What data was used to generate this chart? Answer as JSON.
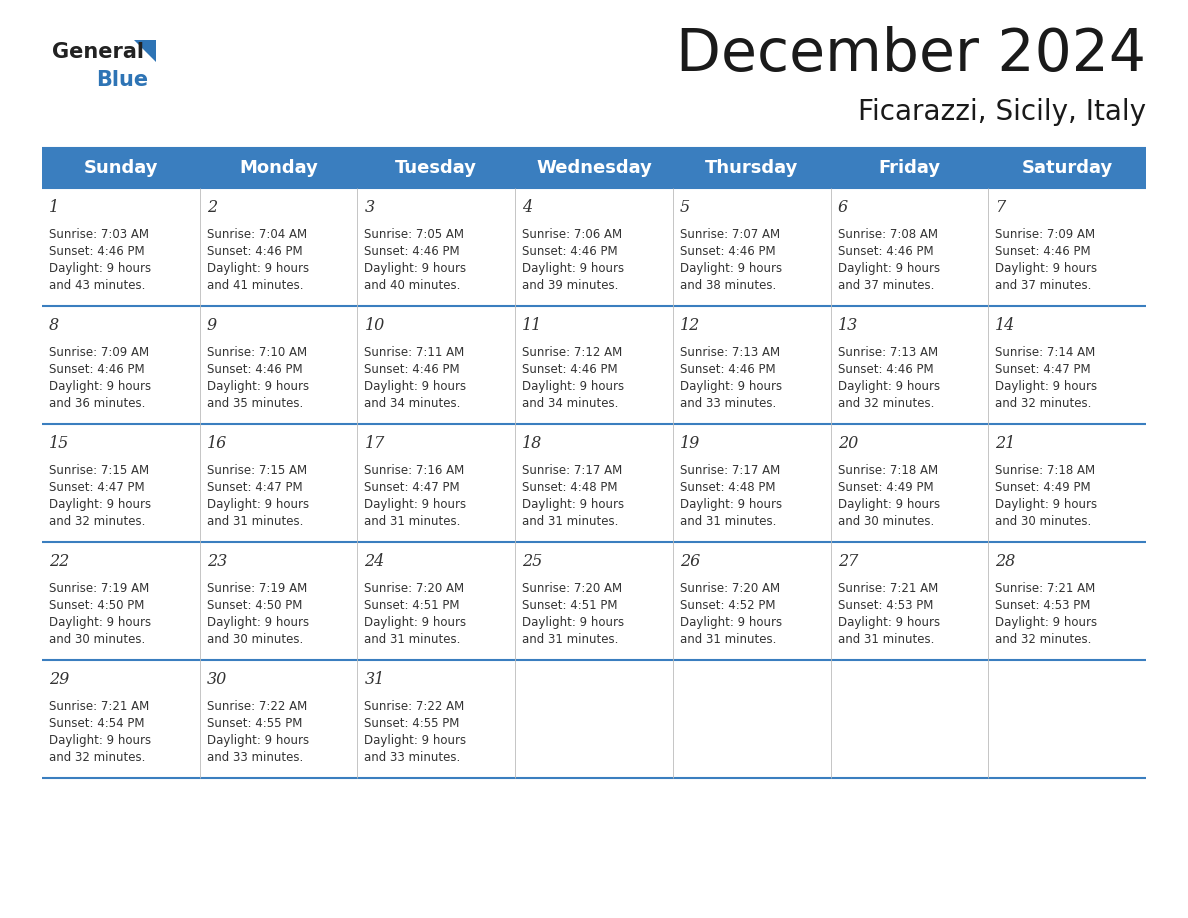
{
  "title": "December 2024",
  "subtitle": "Ficarazzi, Sicily, Italy",
  "header_bg": "#3a7ebf",
  "header_text_color": "#ffffff",
  "days_of_week": [
    "Sunday",
    "Monday",
    "Tuesday",
    "Wednesday",
    "Thursday",
    "Friday",
    "Saturday"
  ],
  "row_bg": "#ffffff",
  "separator_color": "#3a7ebf",
  "grid_line_color": "#cccccc",
  "text_color": "#333333",
  "logo_general_color": "#222222",
  "logo_blue_color": "#2e74b5",
  "weeks": [
    [
      {
        "day": 1,
        "sunrise": "7:03 AM",
        "sunset": "4:46 PM",
        "daylight": "9 hours and 43 minutes."
      },
      {
        "day": 2,
        "sunrise": "7:04 AM",
        "sunset": "4:46 PM",
        "daylight": "9 hours and 41 minutes."
      },
      {
        "day": 3,
        "sunrise": "7:05 AM",
        "sunset": "4:46 PM",
        "daylight": "9 hours and 40 minutes."
      },
      {
        "day": 4,
        "sunrise": "7:06 AM",
        "sunset": "4:46 PM",
        "daylight": "9 hours and 39 minutes."
      },
      {
        "day": 5,
        "sunrise": "7:07 AM",
        "sunset": "4:46 PM",
        "daylight": "9 hours and 38 minutes."
      },
      {
        "day": 6,
        "sunrise": "7:08 AM",
        "sunset": "4:46 PM",
        "daylight": "9 hours and 37 minutes."
      },
      {
        "day": 7,
        "sunrise": "7:09 AM",
        "sunset": "4:46 PM",
        "daylight": "9 hours and 37 minutes."
      }
    ],
    [
      {
        "day": 8,
        "sunrise": "7:09 AM",
        "sunset": "4:46 PM",
        "daylight": "9 hours and 36 minutes."
      },
      {
        "day": 9,
        "sunrise": "7:10 AM",
        "sunset": "4:46 PM",
        "daylight": "9 hours and 35 minutes."
      },
      {
        "day": 10,
        "sunrise": "7:11 AM",
        "sunset": "4:46 PM",
        "daylight": "9 hours and 34 minutes."
      },
      {
        "day": 11,
        "sunrise": "7:12 AM",
        "sunset": "4:46 PM",
        "daylight": "9 hours and 34 minutes."
      },
      {
        "day": 12,
        "sunrise": "7:13 AM",
        "sunset": "4:46 PM",
        "daylight": "9 hours and 33 minutes."
      },
      {
        "day": 13,
        "sunrise": "7:13 AM",
        "sunset": "4:46 PM",
        "daylight": "9 hours and 32 minutes."
      },
      {
        "day": 14,
        "sunrise": "7:14 AM",
        "sunset": "4:47 PM",
        "daylight": "9 hours and 32 minutes."
      }
    ],
    [
      {
        "day": 15,
        "sunrise": "7:15 AM",
        "sunset": "4:47 PM",
        "daylight": "9 hours and 32 minutes."
      },
      {
        "day": 16,
        "sunrise": "7:15 AM",
        "sunset": "4:47 PM",
        "daylight": "9 hours and 31 minutes."
      },
      {
        "day": 17,
        "sunrise": "7:16 AM",
        "sunset": "4:47 PM",
        "daylight": "9 hours and 31 minutes."
      },
      {
        "day": 18,
        "sunrise": "7:17 AM",
        "sunset": "4:48 PM",
        "daylight": "9 hours and 31 minutes."
      },
      {
        "day": 19,
        "sunrise": "7:17 AM",
        "sunset": "4:48 PM",
        "daylight": "9 hours and 31 minutes."
      },
      {
        "day": 20,
        "sunrise": "7:18 AM",
        "sunset": "4:49 PM",
        "daylight": "9 hours and 30 minutes."
      },
      {
        "day": 21,
        "sunrise": "7:18 AM",
        "sunset": "4:49 PM",
        "daylight": "9 hours and 30 minutes."
      }
    ],
    [
      {
        "day": 22,
        "sunrise": "7:19 AM",
        "sunset": "4:50 PM",
        "daylight": "9 hours and 30 minutes."
      },
      {
        "day": 23,
        "sunrise": "7:19 AM",
        "sunset": "4:50 PM",
        "daylight": "9 hours and 30 minutes."
      },
      {
        "day": 24,
        "sunrise": "7:20 AM",
        "sunset": "4:51 PM",
        "daylight": "9 hours and 31 minutes."
      },
      {
        "day": 25,
        "sunrise": "7:20 AM",
        "sunset": "4:51 PM",
        "daylight": "9 hours and 31 minutes."
      },
      {
        "day": 26,
        "sunrise": "7:20 AM",
        "sunset": "4:52 PM",
        "daylight": "9 hours and 31 minutes."
      },
      {
        "day": 27,
        "sunrise": "7:21 AM",
        "sunset": "4:53 PM",
        "daylight": "9 hours and 31 minutes."
      },
      {
        "day": 28,
        "sunrise": "7:21 AM",
        "sunset": "4:53 PM",
        "daylight": "9 hours and 32 minutes."
      }
    ],
    [
      {
        "day": 29,
        "sunrise": "7:21 AM",
        "sunset": "4:54 PM",
        "daylight": "9 hours and 32 minutes."
      },
      {
        "day": 30,
        "sunrise": "7:22 AM",
        "sunset": "4:55 PM",
        "daylight": "9 hours and 33 minutes."
      },
      {
        "day": 31,
        "sunrise": "7:22 AM",
        "sunset": "4:55 PM",
        "daylight": "9 hours and 33 minutes."
      },
      null,
      null,
      null,
      null
    ]
  ],
  "figsize": [
    11.88,
    9.18
  ],
  "dpi": 100
}
